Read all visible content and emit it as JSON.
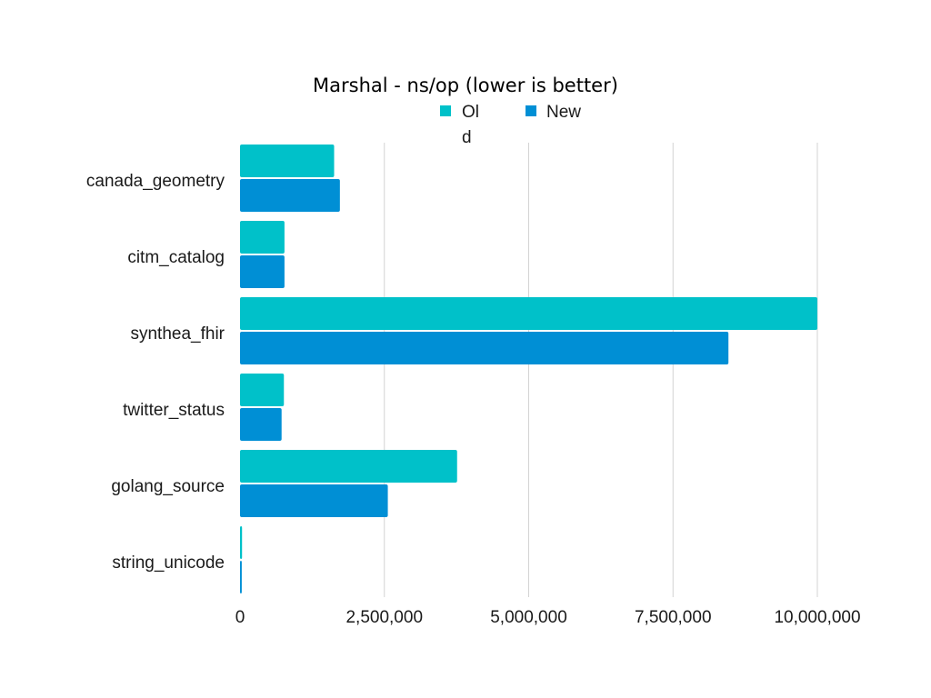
{
  "chart_data": {
    "type": "bar",
    "orientation": "horizontal",
    "title": "Marshal - ns/op (lower is better)",
    "xlabel": "",
    "ylabel": "",
    "categories": [
      "canada_geometry",
      "citm_catalog",
      "synthea_fhir",
      "twitter_status",
      "golang_source",
      "string_unicode"
    ],
    "series": [
      {
        "name": "Old",
        "color": "#00c1c9",
        "values": [
          1630000,
          770000,
          10000000,
          760000,
          3760000,
          35000
        ]
      },
      {
        "name": "New",
        "color": "#008fd5",
        "values": [
          1730000,
          770000,
          8460000,
          720000,
          2560000,
          30000
        ]
      }
    ],
    "xlim": [
      0,
      10000000
    ],
    "xticks": [
      0,
      2500000,
      5000000,
      7500000,
      10000000
    ],
    "xtick_labels": [
      "0",
      "2,500,000",
      "5,000,000",
      "7,500,000",
      "10,000,000"
    ],
    "grid": true,
    "legend_position": "top"
  }
}
